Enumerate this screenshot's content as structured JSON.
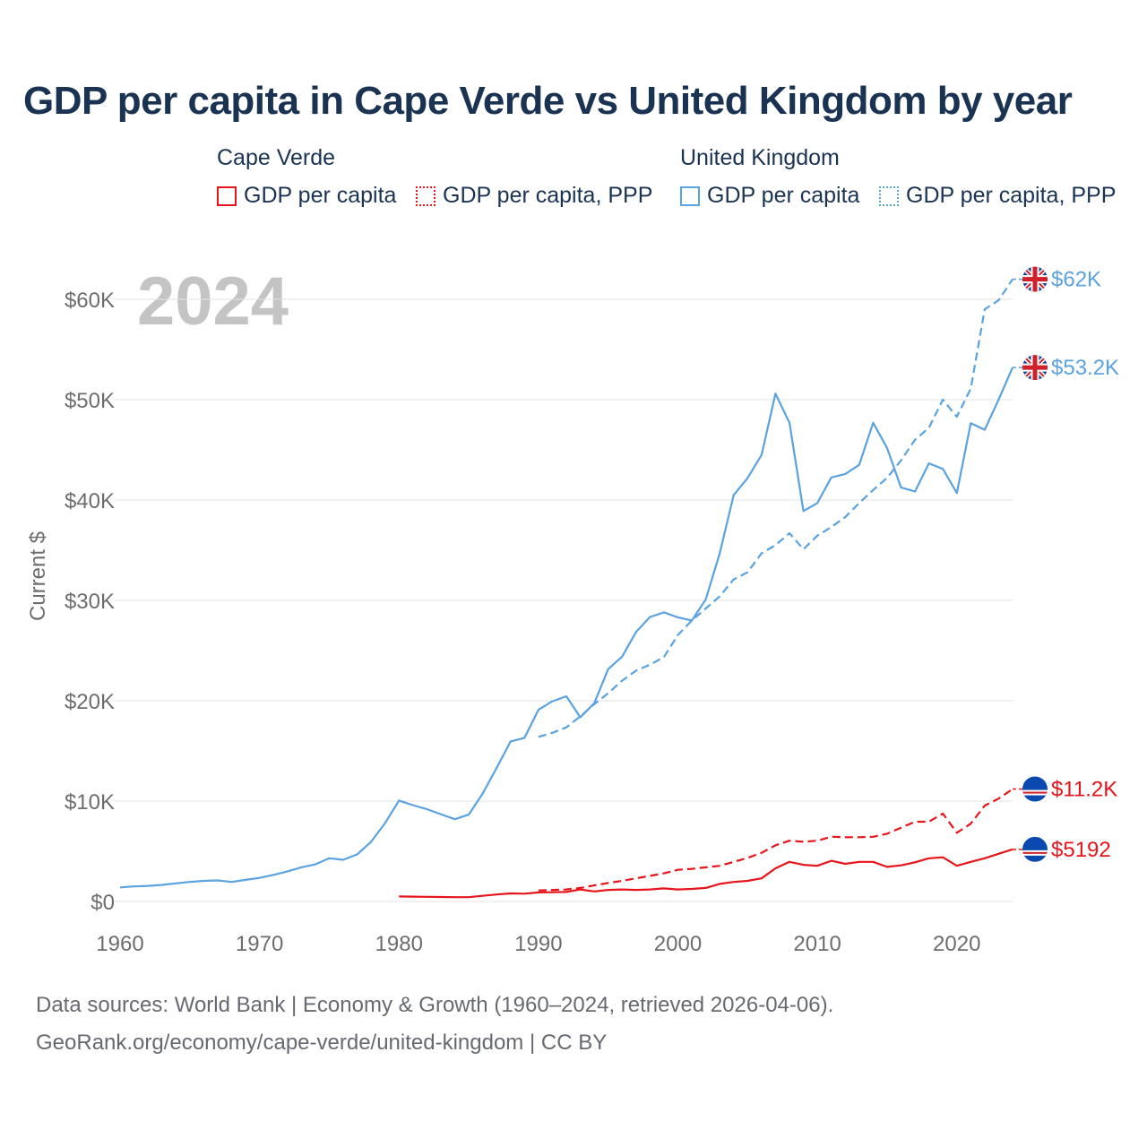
{
  "title": "GDP per capita in Cape Verde vs United Kingdom by year",
  "legend": {
    "groups": [
      {
        "country": "Cape Verde",
        "color": "#e8141b",
        "items": [
          {
            "label": "GDP per capita",
            "style": "solid"
          },
          {
            "label": "GDP per capita, PPP",
            "style": "dotted"
          }
        ]
      },
      {
        "country": "United Kingdom",
        "color": "#5aa2e0",
        "items": [
          {
            "label": "GDP per capita",
            "style": "solid"
          },
          {
            "label": "GDP per capita, PPP",
            "style": "dotted"
          }
        ]
      }
    ]
  },
  "source": {
    "line1": "Data sources: World Bank | Economy & Growth (1960–2024, retrieved 2026-04-06).",
    "line2": "GeoRank.org/economy/cape-verde/united-kingdom | CC BY"
  },
  "chart_data": {
    "type": "line",
    "year_label": "2024",
    "ylabel": "Current $",
    "xlabel": "",
    "xlim": [
      1960,
      2024
    ],
    "ylim": [
      0,
      64000
    ],
    "x_ticks": [
      1960,
      1970,
      1980,
      1990,
      2000,
      2010,
      2020
    ],
    "x_tick_labels": [
      "1960",
      "1970",
      "1980",
      "1990",
      "2000",
      "2010",
      "2020"
    ],
    "y_ticks": [
      0,
      10000,
      20000,
      30000,
      40000,
      50000,
      60000
    ],
    "y_tick_labels": [
      "$0",
      "$10K",
      "$20K",
      "$30K",
      "$40K",
      "$50K",
      "$60K"
    ],
    "grid": true,
    "series": [
      {
        "name": "Cape Verde GDP per capita",
        "country": "Cape Verde",
        "color": "#e8141b",
        "dash": "solid",
        "end_label": "$5192",
        "flag": "cape-verde-flag-icon",
        "x": [
          1980,
          1981,
          1982,
          1983,
          1984,
          1985,
          1986,
          1987,
          1988,
          1989,
          1990,
          1991,
          1992,
          1993,
          1994,
          1995,
          1996,
          1997,
          1998,
          1999,
          2000,
          2001,
          2002,
          2003,
          2004,
          2005,
          2006,
          2007,
          2008,
          2009,
          2010,
          2011,
          2012,
          2013,
          2014,
          2015,
          2016,
          2017,
          2018,
          2019,
          2020,
          2021,
          2022,
          2023,
          2024
        ],
        "values": [
          500,
          480,
          460,
          450,
          430,
          430,
          560,
          700,
          800,
          780,
          900,
          920,
          950,
          1200,
          1000,
          1150,
          1200,
          1150,
          1200,
          1300,
          1200,
          1250,
          1350,
          1750,
          1950,
          2050,
          2300,
          3300,
          3950,
          3650,
          3550,
          4050,
          3750,
          3950,
          3950,
          3450,
          3600,
          3900,
          4300,
          4400,
          3550,
          3950,
          4300,
          4750,
          5192
        ]
      },
      {
        "name": "Cape Verde GDP per capita, PPP",
        "country": "Cape Verde",
        "color": "#e8141b",
        "dash": "dashed",
        "end_label": "$11.2K",
        "flag": "cape-verde-flag-icon",
        "x": [
          1990,
          1991,
          1992,
          1993,
          1994,
          1995,
          1996,
          1997,
          1998,
          1999,
          2000,
          2001,
          2002,
          2003,
          2004,
          2005,
          2006,
          2007,
          2008,
          2009,
          2010,
          2011,
          2012,
          2013,
          2014,
          2015,
          2016,
          2017,
          2018,
          2019,
          2020,
          2021,
          2022,
          2023,
          2024
        ],
        "values": [
          1100,
          1150,
          1200,
          1350,
          1600,
          1850,
          2050,
          2300,
          2550,
          2800,
          3150,
          3250,
          3400,
          3550,
          3950,
          4350,
          4850,
          5600,
          6050,
          5950,
          6050,
          6450,
          6400,
          6400,
          6450,
          6750,
          7350,
          7950,
          7950,
          8750,
          6850,
          7750,
          9550,
          10250,
          11200
        ]
      },
      {
        "name": "United Kingdom GDP per capita",
        "country": "United Kingdom",
        "color": "#5aa2e0",
        "dash": "solid",
        "end_label": "$53.2K",
        "flag": "uk-flag-icon",
        "x": [
          1960,
          1961,
          1962,
          1963,
          1964,
          1965,
          1966,
          1967,
          1968,
          1969,
          1970,
          1971,
          1972,
          1973,
          1974,
          1975,
          1976,
          1977,
          1978,
          1979,
          1980,
          1981,
          1982,
          1983,
          1984,
          1985,
          1986,
          1987,
          1988,
          1989,
          1990,
          1991,
          1992,
          1993,
          1994,
          1995,
          1996,
          1997,
          1998,
          1999,
          2000,
          2001,
          2002,
          2003,
          2004,
          2005,
          2006,
          2007,
          2008,
          2009,
          2010,
          2011,
          2012,
          2013,
          2014,
          2015,
          2016,
          2017,
          2018,
          2019,
          2020,
          2021,
          2022,
          2023,
          2024
        ],
        "values": [
          1400,
          1500,
          1550,
          1650,
          1800,
          1950,
          2050,
          2100,
          1950,
          2150,
          2350,
          2650,
          3000,
          3400,
          3700,
          4300,
          4150,
          4700,
          5950,
          7800,
          10050,
          9600,
          9200,
          8700,
          8200,
          8650,
          10750,
          13300,
          15950,
          16300,
          19100,
          19950,
          20450,
          18350,
          19750,
          23150,
          24400,
          26850,
          28350,
          28800,
          28300,
          28000,
          30100,
          34700,
          40500,
          42200,
          44500,
          50600,
          47700,
          38900,
          39700,
          42250,
          42600,
          43500,
          47700,
          45200,
          41250,
          40850,
          43650,
          43100,
          40700,
          47650,
          47000,
          50000,
          53200
        ]
      },
      {
        "name": "United Kingdom GDP per capita, PPP",
        "country": "United Kingdom",
        "color": "#5aa2e0",
        "dash": "dashed",
        "end_label": "$62K",
        "flag": "uk-flag-icon",
        "x": [
          1990,
          1991,
          1992,
          1993,
          1994,
          1995,
          1996,
          1997,
          1998,
          1999,
          2000,
          2001,
          2002,
          2003,
          2004,
          2005,
          2006,
          2007,
          2008,
          2009,
          2010,
          2011,
          2012,
          2013,
          2014,
          2015,
          2016,
          2017,
          2018,
          2019,
          2020,
          2021,
          2022,
          2023,
          2024
        ],
        "values": [
          16400,
          16800,
          17350,
          18450,
          19650,
          20750,
          22000,
          23000,
          23600,
          24350,
          26550,
          28000,
          29200,
          30400,
          32100,
          32800,
          34700,
          35500,
          36700,
          35100,
          36450,
          37300,
          38300,
          39700,
          41000,
          42200,
          43950,
          46000,
          47200,
          50000,
          48300,
          51100,
          59000,
          59900,
          62000
        ]
      }
    ]
  }
}
